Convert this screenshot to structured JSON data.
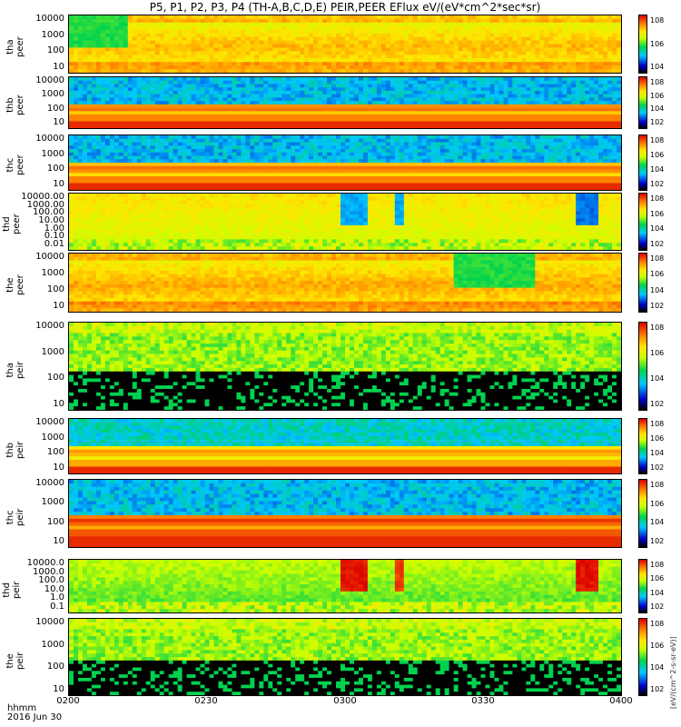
{
  "title": "P5, P1, P2, P3, P4 (TH-A,B,C,D,E) PEIR,PEER EFlux eV/(eV*cm^2*sec*sr)",
  "colorbar_unit_label": "[eV/(cm^2-s-sr-eV)]",
  "x_axis": {
    "label_line1": "hhmm",
    "label_line2": "2016 Jun 30",
    "ticks": [
      "0200",
      "0230",
      "0300",
      "0330",
      "0400"
    ]
  },
  "chart_data": {
    "type": "heatmap",
    "colormap": "rainbow (black low → blue → green → yellow → red high)",
    "colors": {
      "low": "#000000",
      "blue": "#0000ff",
      "cyan": "#00e0ff",
      "green": "#00d000",
      "yellow": "#ffff00",
      "orange": "#ff9000",
      "red": "#e00000"
    },
    "x_range": [
      "02:00",
      "04:00"
    ],
    "y_scale": "log",
    "panels": [
      {
        "probe": "tha",
        "product": "peer",
        "ylabel": "tha\npeer",
        "y_ticks": [
          "10000",
          "1000",
          "100",
          "10"
        ],
        "cbar_ticks": [
          "10^8",
          "10^6",
          "10^4"
        ],
        "texture": "smooth",
        "base_level": 0.78,
        "features": [
          {
            "start": 0.0,
            "end": 0.1,
            "level": 0.5
          }
        ]
      },
      {
        "probe": "thb",
        "product": "peer",
        "ylabel": "thb\npeer",
        "y_ticks": [
          "10000",
          "1000",
          "100",
          "10"
        ],
        "cbar_ticks": [
          "10^8",
          "10^6",
          "10^4",
          "10^2"
        ],
        "texture": "banded",
        "base_level": 0.3,
        "band_level": 0.9
      },
      {
        "probe": "thc",
        "product": "peer",
        "ylabel": "thc\npeer",
        "y_ticks": [
          "10000",
          "1000",
          "100",
          "10"
        ],
        "cbar_ticks": [
          "10^8",
          "10^6",
          "10^4",
          "10^2"
        ],
        "texture": "banded",
        "base_level": 0.3,
        "band_level": 0.9
      },
      {
        "probe": "thd",
        "product": "peer",
        "ylabel": "thd\npeer",
        "y_ticks": [
          "10000.00",
          "1000.00",
          "100.00",
          "10.00",
          "1.00",
          "0.10",
          "0.01"
        ],
        "cbar_ticks": [
          "10^8",
          "10^6",
          "10^4",
          "10^2"
        ],
        "texture": "events",
        "base_level": 0.72,
        "features": [
          {
            "start": 0.49,
            "end": 0.54,
            "level": 0.3
          },
          {
            "start": 0.59,
            "end": 0.61,
            "level": 0.3
          },
          {
            "start": 0.92,
            "end": 0.96,
            "level": 0.25
          }
        ]
      },
      {
        "probe": "the",
        "product": "peer",
        "ylabel": "the\npeer",
        "y_ticks": [
          "10000",
          "1000",
          "100",
          "10"
        ],
        "cbar_ticks": [
          "10^8",
          "10^6",
          "10^4",
          "10^2"
        ],
        "texture": "smooth",
        "base_level": 0.8,
        "features": [
          {
            "start": 0.7,
            "end": 0.85,
            "level": 0.5
          }
        ]
      },
      {
        "probe": "tha",
        "product": "peir",
        "ylabel": "tha\npeir",
        "y_ticks": [
          "10000",
          "1000",
          "100",
          "10"
        ],
        "cbar_ticks": [
          "10^8",
          "10^6",
          "10^4",
          "10^2"
        ],
        "texture": "noisy_low",
        "base_level": 0.55
      },
      {
        "probe": "thb",
        "product": "peir",
        "ylabel": "thb\npeir",
        "y_ticks": [
          "10000",
          "1000",
          "100",
          "10"
        ],
        "cbar_ticks": [
          "10^8",
          "10^6",
          "10^4",
          "10^2"
        ],
        "texture": "banded",
        "base_level": 0.35,
        "band_level": 0.85
      },
      {
        "probe": "thc",
        "product": "peir",
        "ylabel": "thc\npeir",
        "y_ticks": [
          "10000",
          "1000",
          "100",
          "10"
        ],
        "cbar_ticks": [
          "10^8",
          "10^6",
          "10^4",
          "10^2"
        ],
        "texture": "banded",
        "base_level": 0.3,
        "band_level": 0.95
      },
      {
        "probe": "thd",
        "product": "peir",
        "ylabel": "thd\npeir",
        "y_ticks": [
          "10000.0",
          "1000.0",
          "100.0",
          "10.0",
          "1.0",
          "0.1"
        ],
        "cbar_ticks": [
          "10^8",
          "10^6",
          "10^4",
          "10^2"
        ],
        "texture": "events",
        "base_level": 0.6,
        "features": [
          {
            "start": 0.49,
            "end": 0.54,
            "level": 1.0
          },
          {
            "start": 0.59,
            "end": 0.61,
            "level": 0.95
          },
          {
            "start": 0.92,
            "end": 0.96,
            "level": 1.0
          }
        ]
      },
      {
        "probe": "the",
        "product": "peir",
        "ylabel": "the\npeir",
        "y_ticks": [
          "10000",
          "1000",
          "100",
          "10"
        ],
        "cbar_ticks": [
          "10^8",
          "10^6",
          "10^4",
          "10^2"
        ],
        "texture": "noisy_low",
        "base_level": 0.55
      }
    ]
  }
}
